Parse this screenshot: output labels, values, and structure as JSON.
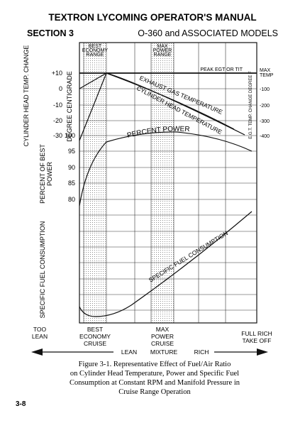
{
  "header": {
    "title": "TEXTRON LYCOMING OPERATOR'S MANUAL",
    "section": "SECTION 3",
    "model": "O-360 and ASSOCIATED MODELS"
  },
  "figure": {
    "left_axis": {
      "cht_label": "CYLINDER HEAD TEMP. CHANGE",
      "cht_unit": "DEGREE CENTIGRADE",
      "cht_ticks": [
        "+10",
        "0",
        "-10",
        "-20",
        "-30"
      ],
      "power_label": [
        "PERCENT OF BEST",
        "POWER"
      ],
      "power_ticks": [
        "100",
        "95",
        "90",
        "85",
        "80"
      ],
      "sfc_label": "SPECIFIC FUEL CONSUMPTION"
    },
    "right_axis": {
      "label": "E.G.T. TEMP. CHANGE DEGREE F",
      "max": [
        "MAX",
        "TEMP"
      ],
      "ticks": [
        "-100",
        "-200",
        "-300",
        "-400"
      ]
    },
    "bands": {
      "economy": [
        "BEST",
        "ECONOMY",
        "RANGE"
      ],
      "power": [
        "MAX",
        "POWER",
        "RANGE"
      ]
    },
    "annotations": {
      "peak": "PEAK EGT OR TIT",
      "egt": "EXHAUST GAS TEMPERATURE",
      "cht": "CYLINDER HEAD TEMPERATURE",
      "power": "PERCENT POWER",
      "sfc": "SPECIFIC FUEL CONSUMPTION"
    },
    "bottom": {
      "too_lean": [
        "TOO",
        "LEAN"
      ],
      "economy": [
        "BEST",
        "ECONOMY",
        "CRUISE"
      ],
      "power": [
        "MAX",
        "POWER",
        "CRUISE"
      ],
      "rich": [
        "FULL RICH",
        "TAKE OFF"
      ],
      "lean": "LEAN",
      "mixture": "MIXTURE",
      "rich_word": "RICH"
    },
    "caption": [
      "Figure 3-1. Representative Effect of Fuel/Air Ratio",
      "on Cylinder Head Temperature, Power and Specific Fuel",
      "Consumption at Constant RPM and Manifold Pressure in",
      "Cruise Range Operation"
    ]
  },
  "page_number": "3-8"
}
